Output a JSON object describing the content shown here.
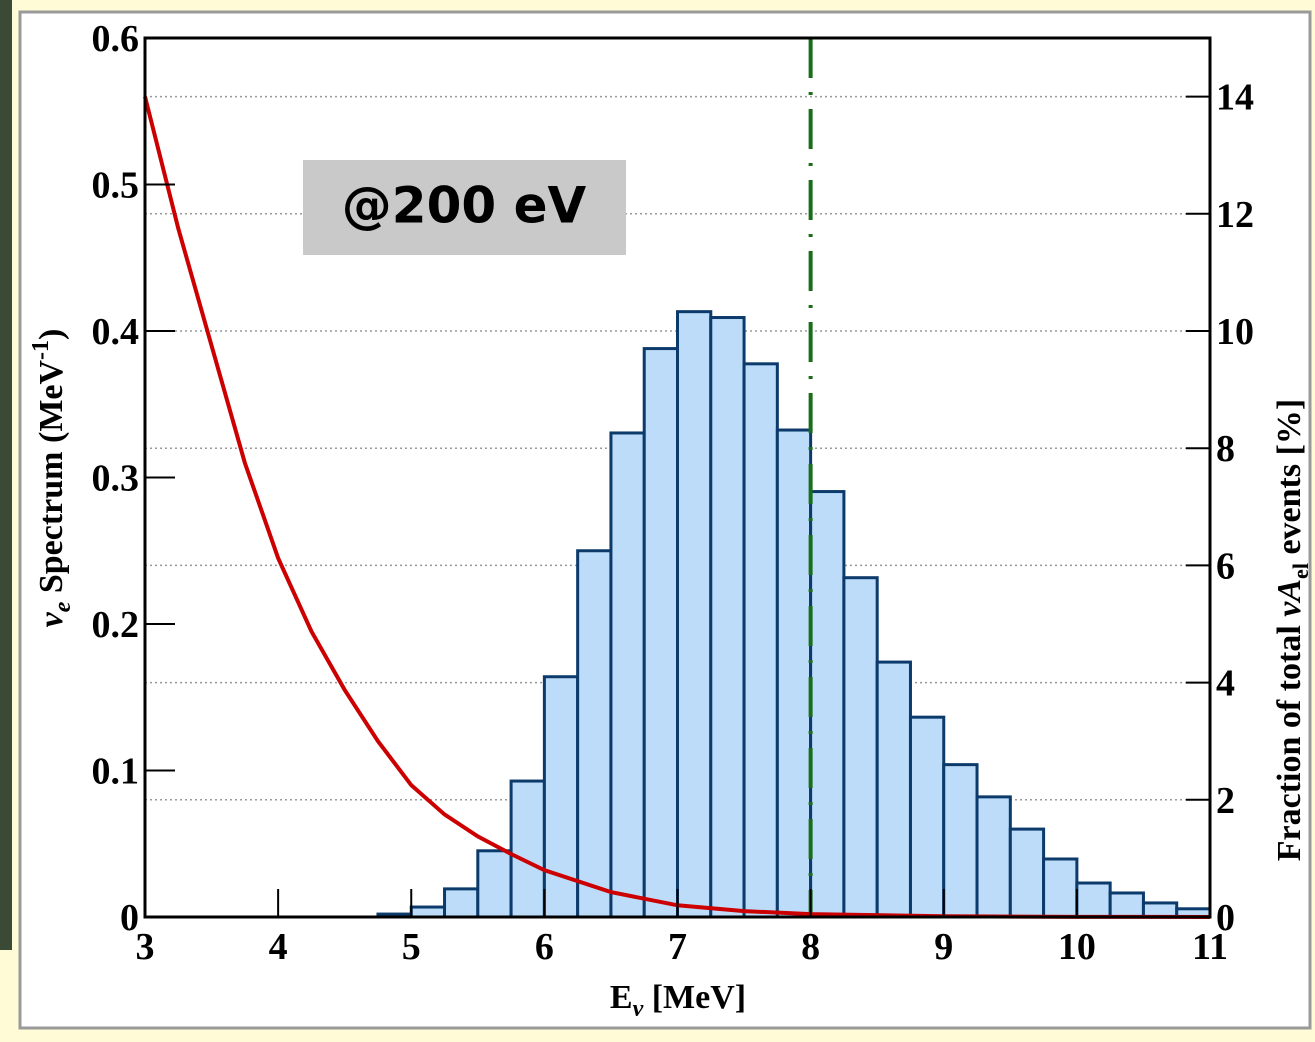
{
  "chart_data": {
    "type": "histogram",
    "x_label": [
      "E",
      "ν",
      " [MeV]"
    ],
    "y_label": [
      "ν",
      "e",
      " Spectrum (MeV",
      "-1",
      ")"
    ],
    "y2_label": [
      "Fraction of total ",
      "νA",
      "el",
      " events [%]"
    ],
    "annotation": "@200 eV",
    "xlim": [
      3,
      11
    ],
    "xticks": [
      3,
      4,
      5,
      6,
      7,
      8,
      9,
      10,
      11
    ],
    "ylim": [
      0,
      0.6
    ],
    "yticks": [
      0,
      0.1,
      0.2,
      0.3,
      0.4,
      0.5,
      0.6
    ],
    "y2lim": [
      0,
      15
    ],
    "y2ticks": [
      0,
      2,
      4,
      6,
      8,
      10,
      12,
      14
    ],
    "grid": true,
    "histogram": {
      "axis": "y2",
      "color": "#bcdcfa",
      "edge_color": "#0b3a6b",
      "bins": [
        3,
        3.25,
        3.5,
        3.75,
        4,
        4.25,
        4.5,
        4.75,
        5,
        5.25,
        5.5,
        5.75,
        6,
        6.25,
        6.5,
        6.75,
        7,
        7.25,
        7.5,
        7.75,
        8,
        8.25,
        8.5,
        8.75,
        9,
        9.25,
        9.5,
        9.75,
        10,
        10.25,
        10.5,
        10.75,
        11
      ],
      "values": [
        0,
        0,
        0,
        0,
        0,
        0,
        0,
        0.05,
        0.17,
        0.48,
        1.13,
        2.32,
        4.1,
        6.25,
        8.26,
        9.7,
        10.33,
        10.23,
        9.44,
        8.31,
        7.26,
        5.79,
        4.35,
        3.41,
        2.6,
        2.05,
        1.5,
        0.99,
        0.58,
        0.41,
        0.24,
        0.14
      ]
    },
    "curve": {
      "color": "#cc0000",
      "x": [
        3,
        3.25,
        3.5,
        3.75,
        4,
        4.25,
        4.5,
        4.75,
        5,
        5.25,
        5.5,
        5.75,
        6,
        6.5,
        7,
        7.5,
        8,
        9,
        10,
        11
      ],
      "values": [
        0.56,
        0.47,
        0.39,
        0.31,
        0.245,
        0.195,
        0.155,
        0.12,
        0.09,
        0.07,
        0.055,
        0.043,
        0.032,
        0.017,
        0.008,
        0.004,
        0.002,
        0.0005,
        0.0001,
        0
      ]
    },
    "vline": {
      "x": 8,
      "color": "#1a6e1a"
    }
  }
}
